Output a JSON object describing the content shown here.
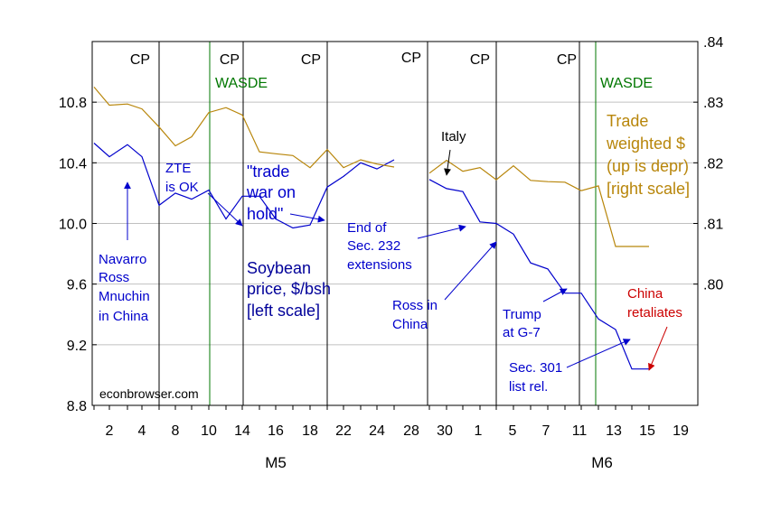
{
  "chart_data": {
    "type": "line",
    "title": "",
    "xlabel": "",
    "ylabel": "",
    "x_tick_labels": [
      "2",
      "4",
      "8",
      "10",
      "14",
      "16",
      "18",
      "22",
      "24",
      "28",
      "30",
      "1",
      "5",
      "7",
      "11",
      "13",
      "15",
      "19"
    ],
    "month_labels": [
      "M5",
      "M6"
    ],
    "y_left": {
      "lim": [
        8.8,
        11.2
      ],
      "ticks": [
        "8.8",
        "9.2",
        "9.6",
        "10.0",
        "10.4",
        "10.8"
      ]
    },
    "y_right": {
      "lim": [
        0.78,
        0.84
      ],
      "ticks": [
        ".80",
        ".81",
        ".82",
        ".83",
        ".84"
      ]
    },
    "series": [
      {
        "name": "Soybean price, $/bsh [left scale]",
        "axis": "left",
        "color": "#0000cc",
        "x": [
          "5/1",
          "5/2",
          "5/3",
          "5/4",
          "5/7",
          "5/8",
          "5/9",
          "5/10",
          "5/11",
          "5/14",
          "5/15",
          "5/16",
          "5/17",
          "5/18",
          "5/21",
          "5/22",
          "5/23",
          "5/24",
          "5/25",
          "null",
          "5/29",
          "5/30",
          "5/31",
          "6/1",
          "6/4",
          "6/5",
          "6/6",
          "6/7",
          "6/8",
          "6/11",
          "6/12",
          "6/13",
          "6/14",
          "6/15"
        ],
        "values": [
          10.53,
          10.44,
          10.52,
          10.44,
          10.12,
          10.2,
          10.16,
          10.22,
          10.03,
          10.18,
          10.18,
          10.03,
          9.97,
          9.99,
          10.24,
          10.31,
          10.4,
          10.36,
          10.42,
          null,
          10.29,
          10.23,
          10.21,
          10.01,
          10.0,
          9.93,
          9.74,
          9.7,
          9.54,
          9.54,
          9.37,
          9.3,
          9.04,
          9.04
        ]
      },
      {
        "name": "Trade weighted $ (up is depr) [right scale]",
        "axis": "right",
        "color": "#b8860b",
        "x": [
          "5/1",
          "5/2",
          "5/3",
          "5/4",
          "5/7",
          "5/8",
          "5/9",
          "5/10",
          "5/11",
          "5/14",
          "5/15",
          "5/16",
          "5/17",
          "5/18",
          "5/21",
          "5/22",
          "5/23",
          "5/24",
          "5/25",
          "null",
          "5/29",
          "5/30",
          "5/31",
          "6/1",
          "6/4",
          "6/5",
          "6/6",
          "6/7",
          "6/8",
          "6/11",
          "6/12",
          "6/13",
          "6/14",
          "6/15"
        ],
        "values": [
          0.8325,
          0.8295,
          0.8297,
          0.8289,
          0.8259,
          0.8228,
          0.8243,
          0.8283,
          0.8291,
          0.8279,
          0.8218,
          0.8215,
          0.8212,
          0.8192,
          0.8222,
          0.8192,
          0.8205,
          0.8198,
          0.8193,
          null,
          0.8183,
          0.8204,
          0.8186,
          0.8192,
          0.8172,
          0.8195,
          0.8171,
          0.8169,
          0.8168,
          0.8154,
          0.8162,
          0.8062,
          0.8062,
          0.8062
        ]
      }
    ],
    "vertical_lines": [
      {
        "label": "CP",
        "color": "#000000"
      },
      {
        "label": "WASDE",
        "color": "#007700"
      },
      {
        "label": "CP",
        "color": "#000000"
      },
      {
        "label": "CP",
        "color": "#000000"
      },
      {
        "label": "CP",
        "color": "#000000"
      },
      {
        "label": "CP",
        "color": "#000000"
      },
      {
        "label": "CP",
        "color": "#000000"
      },
      {
        "label": "WASDE",
        "color": "#007700"
      }
    ],
    "annotations": {
      "navarro": [
        "Navarro",
        "Ross",
        "Mnuchin",
        "in China"
      ],
      "zte": [
        "ZTE",
        "is OK"
      ],
      "trade_war": [
        "\"trade",
        "war on",
        "hold\""
      ],
      "soybean_label": [
        "Soybean",
        "price, $/bsh",
        "[left scale]"
      ],
      "end_sec232": [
        "End of",
        "Sec. 232",
        "extensions"
      ],
      "italy": [
        "Italy"
      ],
      "trade_weighted": [
        "Trade",
        "weighted $",
        "(up is depr)",
        "[right scale]"
      ],
      "ross_china": [
        "Ross in",
        "China"
      ],
      "trump_g7": [
        "Trump",
        "at G-7"
      ],
      "sec301": [
        "Sec. 301",
        "list rel."
      ],
      "china_retaliates": [
        "China",
        "retaliates"
      ],
      "watermark": "econbrowser.com"
    },
    "colors": {
      "blue_text": "#0000cc",
      "gold": "#b8860b",
      "red": "#cc0000",
      "green": "#007700",
      "grid": "#c0c0c0"
    }
  }
}
